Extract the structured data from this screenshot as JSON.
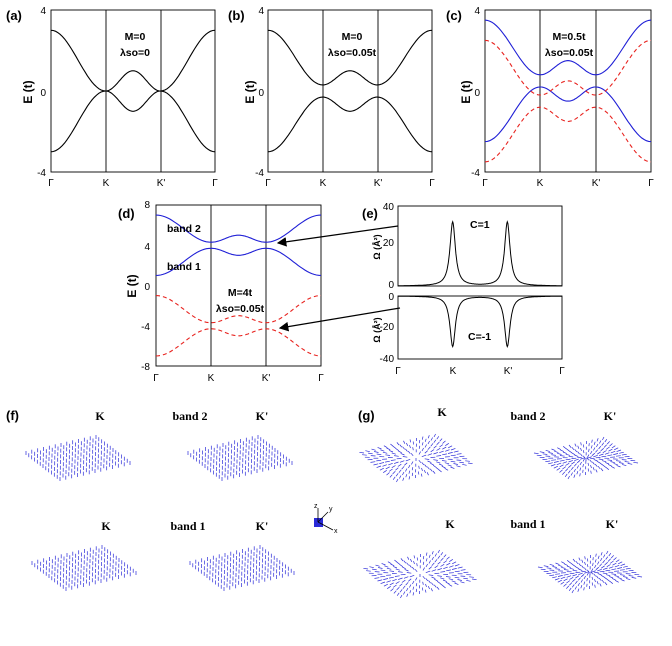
{
  "colors": {
    "band": "#000000",
    "blue": "#1f1fd6",
    "red": "#e8231f",
    "vector": "#2a2ad8"
  },
  "chart_data": [
    {
      "id": "a",
      "type": "line",
      "panel_label": "(a)",
      "annotation": [
        "M=0",
        "λso=0"
      ],
      "ylabel": "E (t)",
      "ylim": [
        -4,
        4
      ],
      "yticks": [
        "4",
        "0",
        "-4"
      ],
      "xticks": [
        "Γ",
        "K",
        "K'",
        "Γ"
      ],
      "series": [
        {
          "style": "solid",
          "color": "black",
          "k_points": [
            0,
            1,
            1.5,
            2,
            3
          ],
          "values": [
            3,
            0,
            1,
            0,
            3
          ]
        },
        {
          "style": "solid",
          "color": "black",
          "k_points": [
            0,
            1,
            1.5,
            2,
            3
          ],
          "values": [
            -3,
            0,
            -1,
            0,
            -3
          ]
        }
      ]
    },
    {
      "id": "b",
      "type": "line",
      "panel_label": "(b)",
      "annotation": [
        "M=0",
        "λso=0.05t"
      ],
      "ylabel": "E (t)",
      "ylim": [
        -4,
        4
      ],
      "yticks": [
        "4",
        "0",
        "-4"
      ],
      "xticks": [
        "Γ",
        "K",
        "K'",
        "Γ"
      ],
      "series": [
        {
          "style": "solid",
          "color": "black",
          "k_points": [
            0,
            1,
            1.5,
            2,
            3
          ],
          "values": [
            3,
            0.3,
            1,
            0.3,
            3
          ]
        },
        {
          "style": "solid",
          "color": "black",
          "k_points": [
            0,
            1,
            1.5,
            2,
            3
          ],
          "values": [
            -3,
            -0.3,
            -1,
            -0.3,
            -3
          ]
        }
      ]
    },
    {
      "id": "c",
      "type": "line",
      "panel_label": "(c)",
      "annotation": [
        "M=0.5t",
        "λso=0.05t"
      ],
      "ylabel": "E (t)",
      "ylim": [
        -4,
        4
      ],
      "yticks": [
        "4",
        "0",
        "-4"
      ],
      "xticks": [
        "Γ",
        "K",
        "K'",
        "Γ"
      ],
      "series": [
        {
          "style": "solid",
          "color": "blue",
          "k_points": [
            0,
            1,
            1.5,
            2,
            3
          ],
          "values": [
            3.5,
            0.8,
            1.5,
            0.8,
            3.5
          ]
        },
        {
          "style": "solid",
          "color": "blue",
          "k_points": [
            0,
            1,
            1.5,
            2,
            3
          ],
          "values": [
            -2.5,
            0.2,
            -0.5,
            0.2,
            -2.5
          ]
        },
        {
          "style": "dashed",
          "color": "red",
          "k_points": [
            0,
            1,
            1.5,
            2,
            3
          ],
          "values": [
            2.5,
            -0.2,
            0.5,
            -0.2,
            2.5
          ]
        },
        {
          "style": "dashed",
          "color": "red",
          "k_points": [
            0,
            1,
            1.5,
            2,
            3
          ],
          "values": [
            -3.5,
            -0.8,
            -1.5,
            -0.8,
            -3.5
          ]
        }
      ]
    },
    {
      "id": "d",
      "type": "line",
      "panel_label": "(d)",
      "annotation": [
        "M=4t",
        "λso=0.05t"
      ],
      "band_labels": [
        "band 2",
        "band 1"
      ],
      "ylabel": "E (t)",
      "ylim": [
        -8,
        8
      ],
      "yticks": [
        "8",
        "4",
        "0",
        "-4",
        "-8"
      ],
      "xticks": [
        "Γ",
        "K",
        "K'",
        "Γ"
      ],
      "series": [
        {
          "style": "solid",
          "color": "blue",
          "k_points": [
            0,
            1,
            1.5,
            2,
            3
          ],
          "values": [
            7,
            4.3,
            5,
            4.3,
            7
          ]
        },
        {
          "style": "solid",
          "color": "blue",
          "k_points": [
            0,
            1,
            1.5,
            2,
            3
          ],
          "values": [
            1,
            3.7,
            3,
            3.7,
            1
          ]
        },
        {
          "style": "dashed",
          "color": "red",
          "k_points": [
            0,
            1,
            1.5,
            2,
            3
          ],
          "values": [
            -1,
            -3.7,
            -3,
            -3.7,
            -1
          ]
        },
        {
          "style": "dashed",
          "color": "red",
          "k_points": [
            0,
            1,
            1.5,
            2,
            3
          ],
          "values": [
            -7,
            -4.3,
            -5,
            -4.3,
            -7
          ]
        }
      ]
    },
    {
      "id": "e",
      "type": "line",
      "panel_label": "(e)",
      "xticks": [
        "Γ",
        "K",
        "K'",
        "Γ"
      ],
      "subplots": [
        {
          "ylabel": "Ω (Å²)",
          "ylim": [
            0,
            40
          ],
          "yticks": [
            "40",
            "20",
            "0"
          ],
          "annotation": "C=1",
          "series": [
            {
              "style": "solid",
              "color": "black",
              "peaks_at": [
                1,
                2
              ],
              "peak_value": 32
            }
          ]
        },
        {
          "ylabel": "Ω (Å²)",
          "ylim": [
            -40,
            0
          ],
          "yticks": [
            "0",
            "-20",
            "-40"
          ],
          "annotation": "C=-1",
          "series": [
            {
              "style": "solid",
              "color": "black",
              "peaks_at": [
                1,
                2
              ],
              "peak_value": -32
            }
          ]
        }
      ]
    }
  ],
  "vector_panels": {
    "f": {
      "label": "(f)",
      "band_top": "band 2",
      "band_bottom": "band 1",
      "k": "K",
      "kp": "K'"
    },
    "g": {
      "label": "(g)",
      "band_top": "band 2",
      "band_bottom": "band 1",
      "k": "K",
      "kp": "K'"
    },
    "axes": {
      "x": "x",
      "y": "y",
      "z": "z"
    }
  }
}
